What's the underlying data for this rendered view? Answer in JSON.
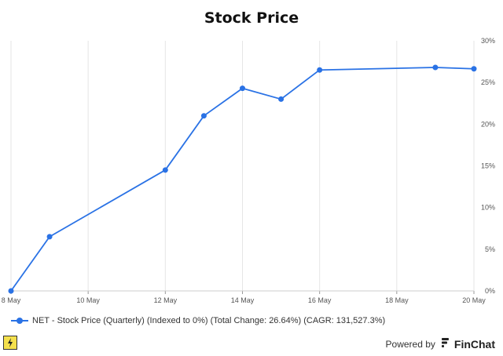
{
  "chart_data": {
    "type": "line",
    "title": "Stock Price",
    "x_tick_labels": [
      "8 May",
      "10 May",
      "12 May",
      "14 May",
      "16 May",
      "18 May",
      "20 May"
    ],
    "y_tick_labels": [
      "0%",
      "5%",
      "10%",
      "15%",
      "20%",
      "25%",
      "30%"
    ],
    "y_axis_position": "right",
    "ylim": [
      0,
      30
    ],
    "xlim_days": [
      "2024-05-08",
      "2024-05-20"
    ],
    "grid": "vertical",
    "legend_position": "bottom-left",
    "series": [
      {
        "name": "NET - Stock Price (Quarterly) (Indexed to 0%) (Total Change: 26.64%) (CAGR: 131,527.3%)",
        "color": "#2a72e5",
        "x": [
          "8 May",
          "9 May",
          "12 May",
          "13 May",
          "14 May",
          "15 May",
          "16 May",
          "19 May",
          "20 May"
        ],
        "values": [
          0,
          6.5,
          14.5,
          21.0,
          24.3,
          23.0,
          26.5,
          26.8,
          26.64
        ]
      }
    ]
  },
  "footer": {
    "powered_by": "Powered by",
    "brand": "FinChat",
    "logo_icon": "finchat-logo-icon",
    "corner_icon": "lightning-badge-icon"
  }
}
